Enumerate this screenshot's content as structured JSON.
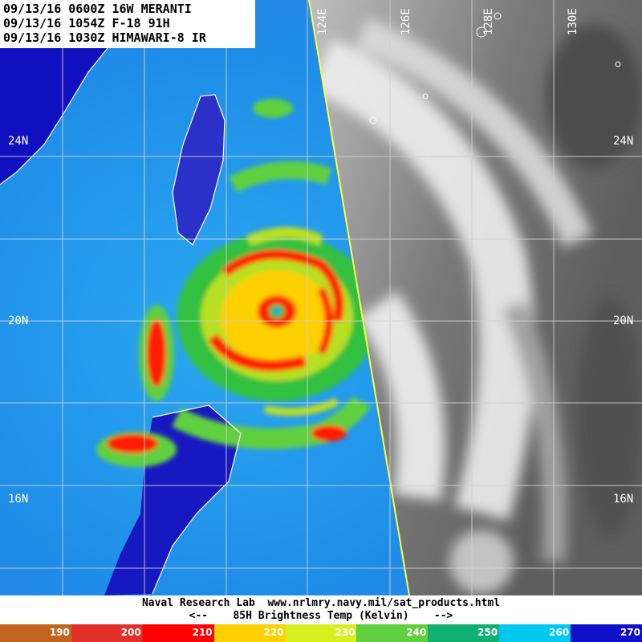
{
  "header": {
    "line1": "09/13/16 0600Z 16W MERANTI",
    "line2": "09/13/16 1054Z F-18 91H",
    "line3": "09/13/16 1030Z HIMAWARI-8 IR"
  },
  "grid": {
    "lat_labels": [
      "24N",
      "20N",
      "16N"
    ],
    "lon_labels": [
      "124E",
      "126E",
      "128E",
      "130E"
    ]
  },
  "footer": {
    "source": "Naval Research Lab  www.nrlmry.navy.mil/sat_products.html",
    "legend_caption": "<--    85H Brightness Temp (Kelvin)    -->"
  },
  "colorbar": {
    "segments": [
      {
        "label": "190",
        "color": "#c0641e",
        "text": "#ffffff"
      },
      {
        "label": "200",
        "color": "#e0302a",
        "text": "#ffffff"
      },
      {
        "label": "210",
        "color": "#ff0000",
        "text": "#ffffff"
      },
      {
        "label": "220",
        "color": "#ffd000",
        "text": "#ffffff"
      },
      {
        "label": "230",
        "color": "#d8f020",
        "text": "#ffffff"
      },
      {
        "label": "240",
        "color": "#60d040",
        "text": "#ffffff"
      },
      {
        "label": "250",
        "color": "#10b070",
        "text": "#ffffff"
      },
      {
        "label": "260",
        "color": "#00c8f0",
        "text": "#ffffff"
      },
      {
        "label": "270",
        "color": "#1010c8",
        "text": "#ffffff"
      }
    ]
  }
}
